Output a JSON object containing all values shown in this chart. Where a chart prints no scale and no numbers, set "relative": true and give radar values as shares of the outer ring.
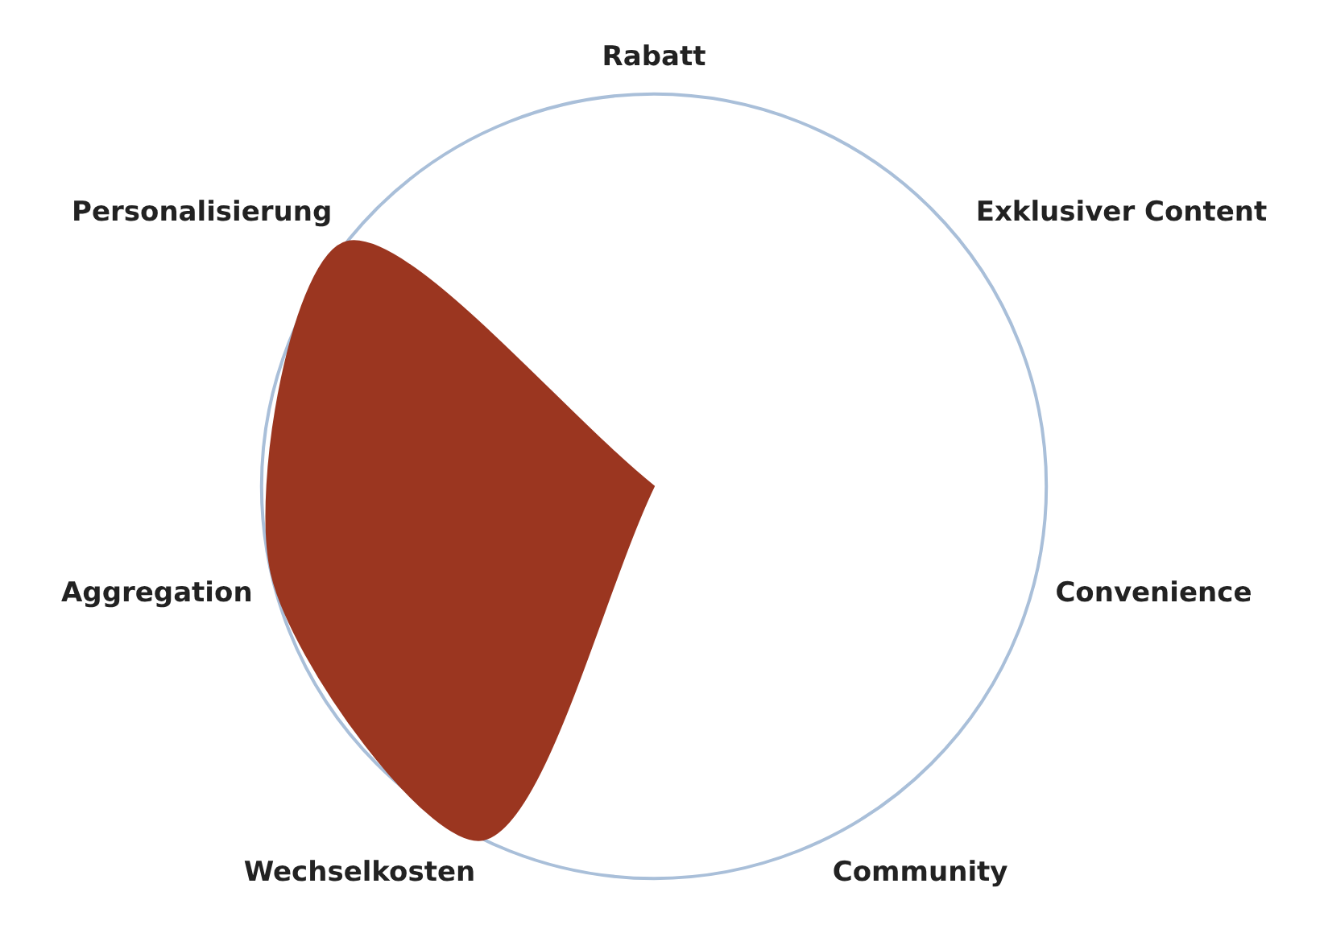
{
  "chart_data": {
    "type": "radar",
    "relative": true,
    "categories": [
      "Rabatt",
      "Exklusiver Content",
      "Convenience",
      "Community",
      "Wechselkosten",
      "Aggregation",
      "Personalisierung"
    ],
    "series": [
      {
        "color": "#9b3620",
        "values": [
          0,
          0,
          0,
          0,
          1,
          1,
          1
        ]
      }
    ],
    "legend": false,
    "grid": true,
    "marker": "none"
  }
}
